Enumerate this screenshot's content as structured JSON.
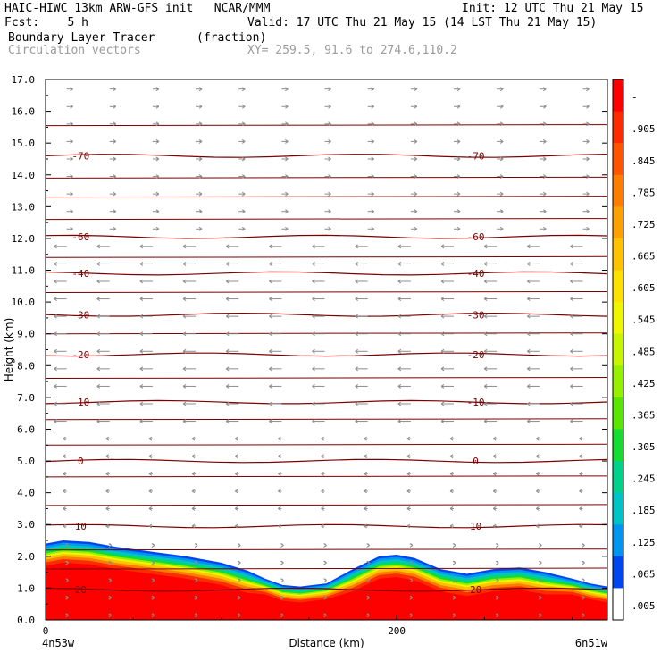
{
  "header": {
    "line1_left": "HAIC-HIWC 13km ARW-GFS init   NCAR/MMM",
    "line1_right": "Init: 12 UTC Thu 21 May 15",
    "line2_left": "Fcst:    5 h",
    "line2_right": "Valid: 17 UTC Thu 21 May 15 (14 LST Thu 21 May 15)",
    "line3_left": "Boundary Layer Tracer",
    "line3_unit": "(fraction)",
    "line4_left": "Circulation vectors",
    "line4_xy": "XY= 259.5, 91.6 to 274.6,110.2"
  },
  "chart_data": {
    "type": "heatmap",
    "title": "Boundary Layer Tracer (fraction)",
    "ylabel": "Height (km)",
    "xlabel": "Distance (km)",
    "ylim": [
      0,
      17
    ],
    "xlim": [
      0,
      320
    ],
    "y_ticks": [
      "0.0",
      "1.0",
      "2.0",
      "3.0",
      "4.0",
      "5.0",
      "6.0",
      "7.0",
      "8.0",
      "9.0",
      "10.0",
      "11.0",
      "12.0",
      "13.0",
      "14.0",
      "15.0",
      "16.0",
      "17.0"
    ],
    "x_ticks": [
      {
        "value": 0,
        "label": "0"
      },
      {
        "value": 200,
        "label": "200"
      }
    ],
    "x_endpoints": {
      "left": "4n53w",
      "right": "6n51w"
    },
    "tracer_top_km": {
      "x": [
        0,
        10,
        25,
        40,
        60,
        80,
        100,
        115,
        125,
        135,
        145,
        160,
        175,
        190,
        200,
        210,
        225,
        240,
        255,
        270,
        285,
        300,
        310,
        320
      ],
      "y": [
        2.4,
        2.5,
        2.45,
        2.3,
        2.15,
        2.0,
        1.8,
        1.55,
        1.3,
        1.1,
        1.05,
        1.15,
        1.6,
        2.0,
        2.05,
        1.95,
        1.6,
        1.45,
        1.6,
        1.65,
        1.5,
        1.3,
        1.15,
        1.05
      ]
    },
    "isotherms_C": [
      {
        "label": "-70",
        "y": 14.6
      },
      {
        "label": "-60",
        "y": 12.05
      },
      {
        "label": "-40",
        "y": 10.9
      },
      {
        "label": "-30",
        "y": 9.6
      },
      {
        "label": "-20",
        "y": 8.35
      },
      {
        "label": "-10",
        "y": 6.85
      },
      {
        "label": "0",
        "y": 5.0
      },
      {
        "label": "10",
        "y": 2.95
      },
      {
        "label": "20",
        "y": 0.95
      }
    ],
    "colorbar": {
      "labels": [
        "-",
        ".905",
        ".845",
        ".785",
        ".725",
        ".665",
        ".605",
        ".545",
        ".485",
        ".425",
        ".365",
        ".305",
        ".245",
        ".185",
        ".125",
        ".065",
        ".005"
      ],
      "colors": [
        "#fd0000",
        "#fd2b00",
        "#fd5500",
        "#fd7d00",
        "#fda100",
        "#fdc300",
        "#fde100",
        "#f0f500",
        "#c8f500",
        "#96f000",
        "#5ae600",
        "#14dc32",
        "#00d28c",
        "#00c3c8",
        "#0096f0",
        "#0046f0",
        "#ffffff"
      ]
    }
  }
}
